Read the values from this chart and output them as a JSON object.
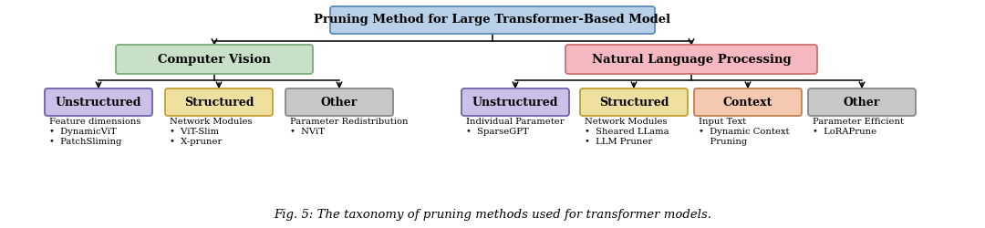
{
  "title": "Pruning Method for Large Transformer-Based Model",
  "title_box_color": "#b8d0e8",
  "title_box_edge": "#5a8ab8",
  "cv_label": "Computer Vision",
  "cv_box_color": "#c8dfc8",
  "cv_box_edge": "#7aaa7a",
  "nlp_label": "Natural Language Processing",
  "nlp_box_color": "#f5b8c0",
  "nlp_box_edge": "#cc7070",
  "cv_children": [
    {
      "label": "Unstructured",
      "color": "#ccc0e8",
      "edge": "#7060a8"
    },
    {
      "label": "Structured",
      "color": "#f0e0a0",
      "edge": "#c0a030"
    },
    {
      "label": "Other",
      "color": "#c8c8c8",
      "edge": "#888888"
    }
  ],
  "nlp_children": [
    {
      "label": "Unstructured",
      "color": "#ccc0e8",
      "edge": "#7060a8"
    },
    {
      "label": "Structured",
      "color": "#f0e0a0",
      "edge": "#c0a030"
    },
    {
      "label": "Context",
      "color": "#f5c8b0",
      "edge": "#c08050"
    },
    {
      "label": "Other",
      "color": "#c8c8c8",
      "edge": "#888888"
    }
  ],
  "cv_unstructured_details": [
    "Feature dimensions",
    "•  DynamicViT",
    "•  PatchSliming"
  ],
  "cv_structured_details": [
    "Network Modules",
    "•  ViT-Slim",
    "•  X-pruner"
  ],
  "cv_other_details": [
    "Parameter Redistribution",
    "•  NViT"
  ],
  "nlp_unstructured_details": [
    "Individual Parameter",
    "•  SparseGPT"
  ],
  "nlp_structured_details": [
    "Network Modules",
    "•  Sheared LLama",
    "•  LLM Pruner"
  ],
  "nlp_context_details": [
    "Input Text",
    "•  Dynamic Context",
    "    Pruning"
  ],
  "nlp_other_details": [
    "Parameter Efficient",
    "•  LoRAPrune"
  ],
  "caption": "Fig. 5: The taxonomy of pruning methods used for transformer models.",
  "bg_color": "#ffffff"
}
